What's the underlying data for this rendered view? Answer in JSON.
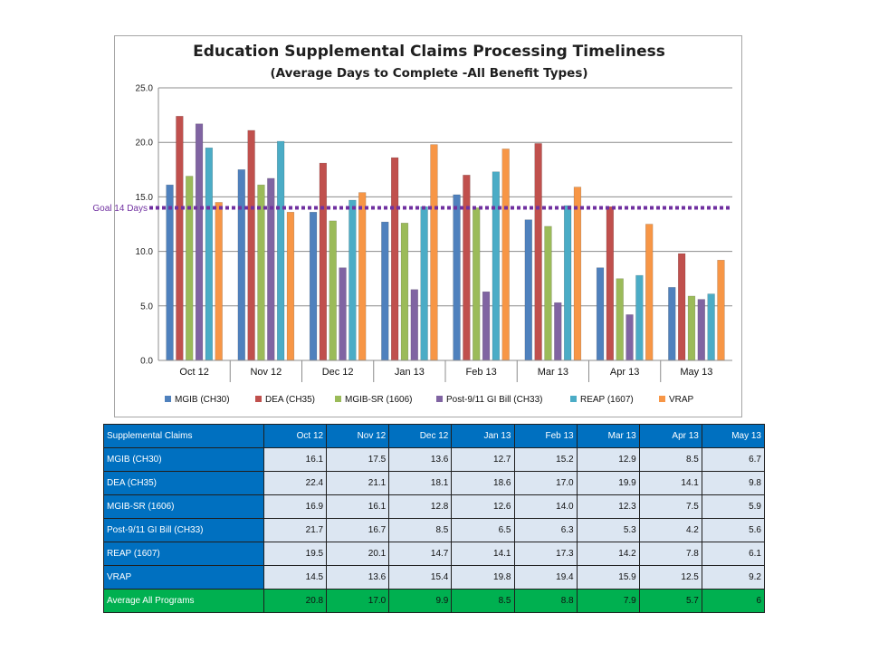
{
  "chart_data": {
    "type": "bar",
    "title": "Education Supplemental Claims Processing Timeliness",
    "subtitle": "(Average Days to Complete -All Benefit Types)",
    "categories": [
      "Oct 12",
      "Nov 12",
      "Dec 12",
      "Jan 13",
      "Feb 13",
      "Mar 13",
      "Apr 13",
      "May 13"
    ],
    "ylim": [
      0,
      25
    ],
    "yticks": [
      "0.0",
      "5.0",
      "10.0",
      "15.0",
      "20.0",
      "25.0"
    ],
    "grid": true,
    "legend_position": "bottom",
    "goal": {
      "label": "Goal 14 Days",
      "value": 14,
      "color": "#7030a0"
    },
    "series": [
      {
        "name": "MGIB (CH30)",
        "color": "#4f81bd",
        "values": [
          16.1,
          17.5,
          13.6,
          12.7,
          15.2,
          12.9,
          8.5,
          6.7
        ]
      },
      {
        "name": "DEA (CH35)",
        "color": "#c0504d",
        "values": [
          22.4,
          21.1,
          18.1,
          18.6,
          17.0,
          19.9,
          14.1,
          9.8
        ]
      },
      {
        "name": "MGIB-SR (1606)",
        "color": "#9bbb59",
        "values": [
          16.9,
          16.1,
          12.8,
          12.6,
          14.0,
          12.3,
          7.5,
          5.9
        ]
      },
      {
        "name": "Post-9/11 GI Bill (CH33)",
        "color": "#8064a2",
        "values": [
          21.7,
          16.7,
          8.5,
          6.5,
          6.3,
          5.3,
          4.2,
          5.6
        ]
      },
      {
        "name": "REAP (1607)",
        "color": "#4bacc6",
        "values": [
          19.5,
          20.1,
          14.7,
          14.1,
          17.3,
          14.2,
          7.8,
          6.1
        ]
      },
      {
        "name": "VRAP",
        "color": "#f79646",
        "values": [
          14.5,
          13.6,
          15.4,
          19.8,
          19.4,
          15.9,
          12.5,
          9.2
        ]
      }
    ]
  },
  "table": {
    "header": [
      "Supplemental Claims",
      "Oct 12",
      "Nov 12",
      "Dec 12",
      "Jan 13",
      "Feb 13",
      "Mar 13",
      "Apr 13",
      "May 13"
    ],
    "rows": [
      [
        "MGIB (CH30)",
        "16.1",
        "17.5",
        "13.6",
        "12.7",
        "15.2",
        "12.9",
        "8.5",
        "6.7"
      ],
      [
        "DEA (CH35)",
        "22.4",
        "21.1",
        "18.1",
        "18.6",
        "17.0",
        "19.9",
        "14.1",
        "9.8"
      ],
      [
        "MGIB-SR (1606)",
        "16.9",
        "16.1",
        "12.8",
        "12.6",
        "14.0",
        "12.3",
        "7.5",
        "5.9"
      ],
      [
        "Post-9/11 GI Bill (CH33)",
        "21.7",
        "16.7",
        "8.5",
        "6.5",
        "6.3",
        "5.3",
        "4.2",
        "5.6"
      ],
      [
        "REAP (1607)",
        "19.5",
        "20.1",
        "14.7",
        "14.1",
        "17.3",
        "14.2",
        "7.8",
        "6.1"
      ],
      [
        "VRAP",
        "14.5",
        "13.6",
        "15.4",
        "19.8",
        "19.4",
        "15.9",
        "12.5",
        "9.2"
      ],
      [
        "Average All Programs",
        "20.8",
        "17.0",
        "9.9",
        "8.5",
        "8.8",
        "7.9",
        "5.7",
        "6"
      ]
    ]
  }
}
